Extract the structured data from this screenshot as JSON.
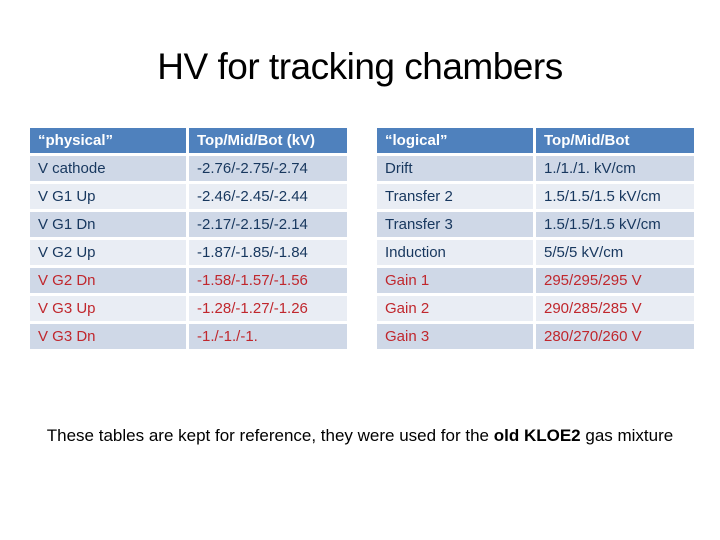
{
  "slide": {
    "title": "HV for tracking chambers"
  },
  "colors": {
    "header_bg": "#4f81bd",
    "row_dark": "#cfd8e7",
    "row_light": "#e9edf4",
    "navy": "#17375e",
    "red": "#c0272d",
    "title_color": "#000000"
  },
  "physical_table": {
    "headers": [
      "“physical”",
      "Top/Mid/Bot (kV)"
    ],
    "rows": [
      {
        "label": "V cathode",
        "value": "-2.76/-2.75/-2.74",
        "emphasis": "navy"
      },
      {
        "label": "V G1 Up",
        "value": "-2.46/-2.45/-2.44",
        "emphasis": "navy"
      },
      {
        "label": "V G1 Dn",
        "value": "-2.17/-2.15/-2.14",
        "emphasis": "navy"
      },
      {
        "label": "V G2 Up",
        "value": "-1.87/-1.85/-1.84",
        "emphasis": "navy"
      },
      {
        "label": "V G2 Dn",
        "value": "-1.58/-1.57/-1.56",
        "emphasis": "red"
      },
      {
        "label": "V G3 Up",
        "value": "-1.28/-1.27/-1.26",
        "emphasis": "red"
      },
      {
        "label": "V G3 Dn",
        "value": "-1./-1./-1.",
        "emphasis": "red"
      }
    ]
  },
  "logical_table": {
    "headers": [
      "“logical”",
      "Top/Mid/Bot"
    ],
    "rows": [
      {
        "label": "Drift",
        "value": "1./1./1. kV/cm",
        "emphasis": "navy"
      },
      {
        "label": "Transfer 2",
        "value": "1.5/1.5/1.5 kV/cm",
        "emphasis": "navy"
      },
      {
        "label": "Transfer 3",
        "value": "1.5/1.5/1.5 kV/cm",
        "emphasis": "navy"
      },
      {
        "label": "Induction",
        "value": "5/5/5 kV/cm",
        "emphasis": "navy"
      },
      {
        "label": "Gain 1",
        "value": "295/295/295 V",
        "emphasis": "red"
      },
      {
        "label": "Gain 2",
        "value": "290/285/285 V",
        "emphasis": "red"
      },
      {
        "label": "Gain 3",
        "value": "280/270/260 V",
        "emphasis": "red"
      }
    ]
  },
  "footer": {
    "prefix": "These tables are kept for reference, they were used for the ",
    "bold": "old KLOE2",
    "suffix": " gas mixture"
  }
}
